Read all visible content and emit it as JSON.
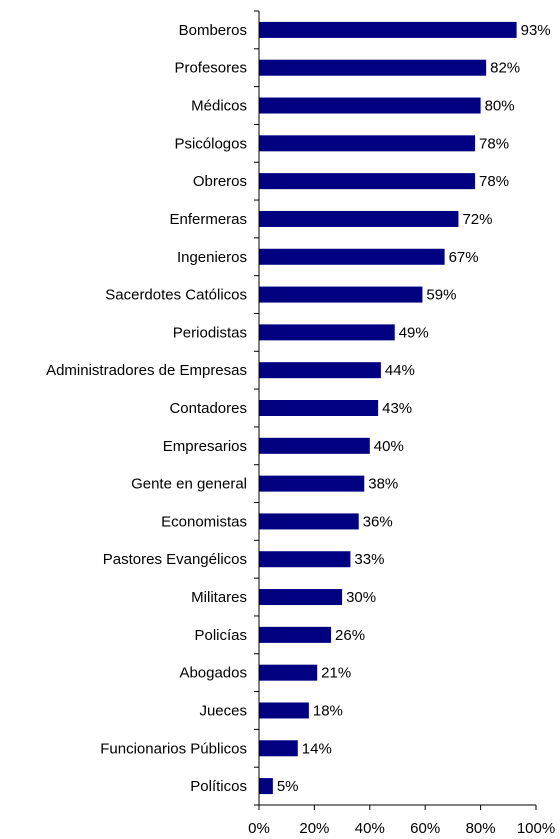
{
  "chart_data": {
    "type": "bar",
    "orientation": "horizontal",
    "categories": [
      "Bomberos",
      "Profesores",
      "Médicos",
      "Psicólogos",
      "Obreros",
      "Enfermeras",
      "Ingenieros",
      "Sacerdotes Católicos",
      "Periodistas",
      "Administradores de Empresas",
      "Contadores",
      "Empresarios",
      "Gente en general",
      "Economistas",
      "Pastores Evangélicos",
      "Militares",
      "Policías",
      "Abogados",
      "Jueces",
      "Funcionarios Públicos",
      "Políticos"
    ],
    "values": [
      93,
      82,
      80,
      78,
      78,
      72,
      67,
      59,
      49,
      44,
      43,
      40,
      38,
      36,
      33,
      30,
      26,
      21,
      18,
      14,
      5
    ],
    "value_labels": [
      "93%",
      "82%",
      "80%",
      "78%",
      "78%",
      "72%",
      "67%",
      "59%",
      "49%",
      "44%",
      "43%",
      "40%",
      "38%",
      "36%",
      "33%",
      "30%",
      "26%",
      "21%",
      "18%",
      "14%",
      "5%"
    ],
    "xlim": [
      0,
      100
    ],
    "x_ticks": [
      0,
      20,
      40,
      60,
      80,
      100
    ],
    "x_tick_labels": [
      "0%",
      "20%",
      "40%",
      "60%",
      "80%",
      "100%"
    ],
    "title": "",
    "xlabel": "",
    "ylabel": "",
    "grid": false,
    "legend": "none",
    "bar_color": "#000080"
  }
}
